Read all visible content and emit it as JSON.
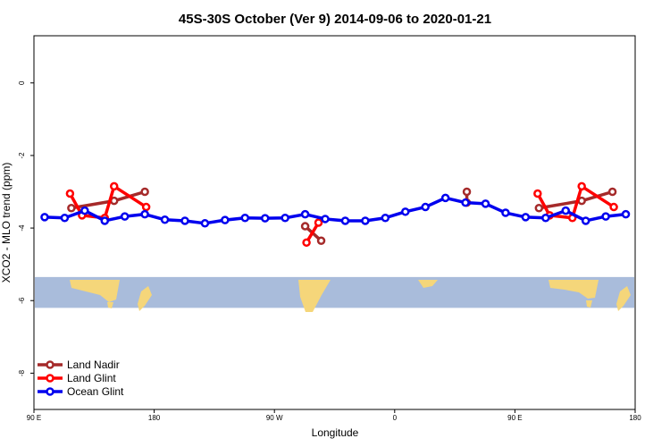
{
  "chart_data": {
    "type": "line",
    "title": "45S-30S October (Ver 9)   2014-09-06 to 2020-01-21",
    "xlabel": "Longitude",
    "ylabel": "XCO2 - MLO trend (ppm)",
    "xlim": [
      90,
      540
    ],
    "ylim": [
      -9,
      1.3
    ],
    "x_ticks": [
      {
        "value": 90,
        "label": "90 E"
      },
      {
        "value": 180,
        "label": "180"
      },
      {
        "value": 270,
        "label": "90 W"
      },
      {
        "value": 360,
        "label": "0"
      },
      {
        "value": 450,
        "label": "90 E"
      },
      {
        "value": 540,
        "label": "180"
      }
    ],
    "y_ticks": [
      {
        "value": 0,
        "label": "0"
      },
      {
        "value": -2,
        "label": "-2"
      },
      {
        "value": -4,
        "label": "-4"
      },
      {
        "value": -6,
        "label": "-6"
      },
      {
        "value": -8,
        "label": "-8"
      }
    ],
    "map_band": {
      "y_top": -5.35,
      "y_bottom": -6.2,
      "ocean_color": "#a9bcdb",
      "land_color": "#f5d67a"
    },
    "legend_position": "bottom-left",
    "series": [
      {
        "name": "Land Nadir",
        "color": "#a52a2a",
        "segments": [
          [
            [
              118,
              -3.45
            ],
            [
              150,
              -3.25
            ],
            [
              173,
              -3.0
            ]
          ],
          [
            [
              293,
              -3.95
            ],
            [
              305,
              -4.35
            ]
          ],
          [
            [
              414,
              -3.0
            ],
            [
              414,
              -3.3
            ]
          ],
          [
            [
              468,
              -3.45
            ],
            [
              500,
              -3.25
            ],
            [
              523,
              -3.0
            ]
          ]
        ]
      },
      {
        "name": "Land Glint",
        "color": "#ff0000",
        "segments": [
          [
            [
              117,
              -3.05
            ],
            [
              126,
              -3.65
            ],
            [
              143,
              -3.72
            ],
            [
              150,
              -2.85
            ],
            [
              174,
              -3.42
            ]
          ],
          [
            [
              294,
              -4.4
            ],
            [
              303,
              -3.85
            ]
          ],
          [
            [
              467,
              -3.05
            ],
            [
              476,
              -3.65
            ],
            [
              493,
              -3.72
            ],
            [
              500,
              -2.85
            ],
            [
              524,
              -3.42
            ]
          ]
        ]
      },
      {
        "name": "Ocean Glint",
        "color": "#0000ee",
        "segments": [
          [
            [
              98,
              -3.7
            ],
            [
              113,
              -3.72
            ],
            [
              128,
              -3.52
            ],
            [
              143,
              -3.8
            ],
            [
              158,
              -3.68
            ],
            [
              173,
              -3.62
            ],
            [
              188,
              -3.77
            ],
            [
              203,
              -3.8
            ],
            [
              218,
              -3.87
            ],
            [
              233,
              -3.78
            ],
            [
              248,
              -3.72
            ],
            [
              263,
              -3.73
            ],
            [
              278,
              -3.72
            ],
            [
              293,
              -3.62
            ],
            [
              308,
              -3.75
            ],
            [
              323,
              -3.8
            ],
            [
              338,
              -3.8
            ],
            [
              353,
              -3.72
            ],
            [
              368,
              -3.55
            ],
            [
              383,
              -3.42
            ],
            [
              398,
              -3.17
            ],
            [
              413,
              -3.3
            ],
            [
              428,
              -3.33
            ],
            [
              443,
              -3.58
            ],
            [
              458,
              -3.7
            ],
            [
              473,
              -3.72
            ],
            [
              488,
              -3.52
            ],
            [
              503,
              -3.8
            ],
            [
              518,
              -3.68
            ],
            [
              533,
              -3.62
            ]
          ]
        ]
      }
    ]
  }
}
